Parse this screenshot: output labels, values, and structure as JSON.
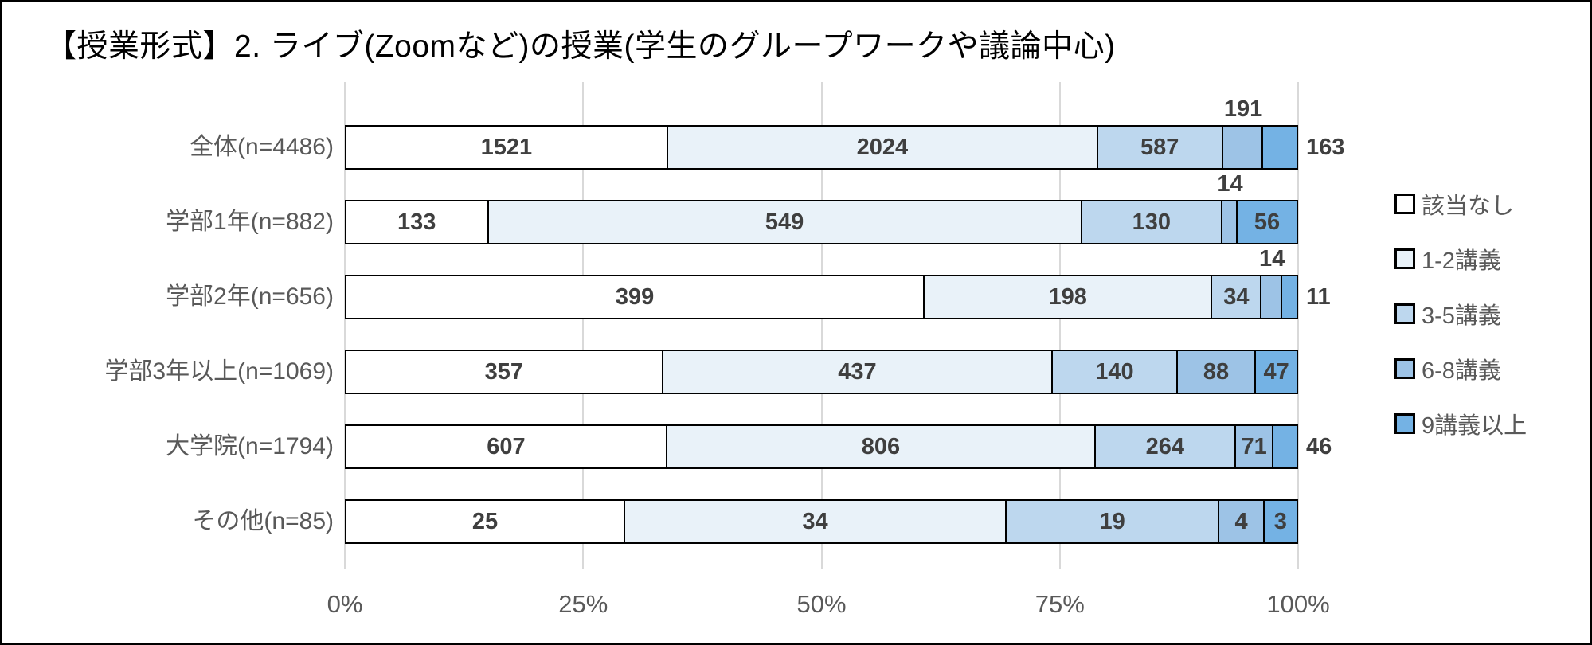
{
  "title": "【授業形式】2. ライブ(Zoomなど)の授業(学生のグループワークや議論中心)",
  "chart_data": {
    "type": "bar",
    "orientation": "horizontal",
    "stacked": "percent",
    "title": "【授業形式】2. ライブ(Zoomなど)の授業(学生のグループワークや議論中心)",
    "categories": [
      "全体(n=4486)",
      "学部1年(n=882)",
      "学部2年(n=656)",
      "学部3年以上(n=1069)",
      "大学院(n=1794)",
      "その他(n=85)"
    ],
    "totals": [
      4486,
      882,
      656,
      1069,
      1794,
      85
    ],
    "series": [
      {
        "name": "該当なし",
        "color": "#ffffff",
        "values": [
          1521,
          133,
          399,
          357,
          607,
          25
        ]
      },
      {
        "name": "1-2講義",
        "color": "#e9f2f9",
        "values": [
          2024,
          549,
          198,
          437,
          806,
          34
        ]
      },
      {
        "name": "3-5講義",
        "color": "#bdd7ee",
        "values": [
          587,
          130,
          34,
          140,
          264,
          19
        ]
      },
      {
        "name": "6-8講義",
        "color": "#9dc3e6",
        "values": [
          191,
          14,
          14,
          88,
          71,
          4
        ]
      },
      {
        "name": "9講義以上",
        "color": "#74b2e4",
        "values": [
          163,
          56,
          11,
          47,
          46,
          3
        ]
      }
    ],
    "x_ticks": [
      "0%",
      "25%",
      "50%",
      "75%",
      "100%"
    ],
    "xlim": [
      0,
      100
    ],
    "grid": true,
    "legend_position": "right",
    "colors": {
      "grid": "#d9d9d9",
      "bar_border": "#000000",
      "value_label": "#3f3f3f",
      "category_label": "#595959",
      "axis_label": "#595959",
      "frame_border": "#000000"
    }
  }
}
